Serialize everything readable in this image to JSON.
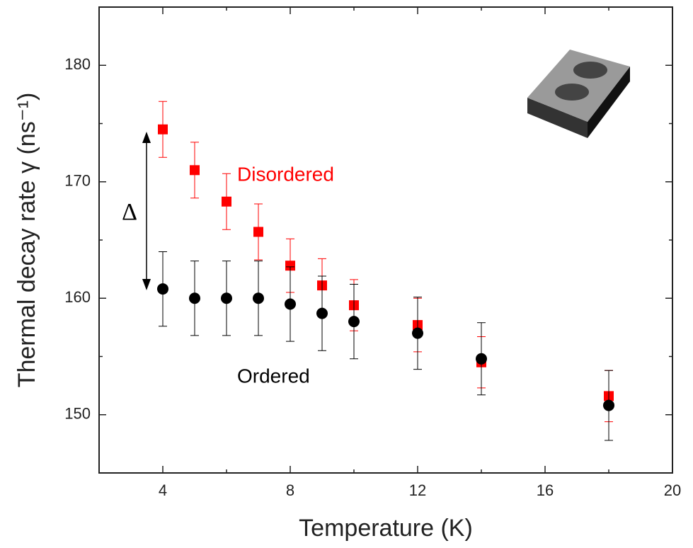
{
  "chart_data": {
    "type": "scatter",
    "xlabel": "Temperature (K)",
    "ylabel": "Thermal decay rate γ (ns⁻¹)",
    "xlim": [
      2,
      20
    ],
    "ylim": [
      145,
      185
    ],
    "xticks": [
      4,
      8,
      12,
      16,
      20
    ],
    "yticks": [
      150,
      160,
      170,
      180
    ],
    "xminorticks": [
      2,
      6,
      10,
      14,
      18
    ],
    "yminorticks": [
      145,
      155,
      165,
      175,
      185
    ],
    "series": [
      {
        "name": "Disordered",
        "color": "#ff0000",
        "marker": "square",
        "x": [
          4,
          5,
          6,
          7,
          8,
          9,
          10,
          12,
          14,
          18
        ],
        "values": [
          174.5,
          171,
          168.3,
          165.7,
          162.8,
          161.1,
          159.4,
          157.7,
          154.5,
          151.6
        ],
        "errors": [
          2.4,
          2.4,
          2.4,
          2.4,
          2.3,
          2.3,
          2.2,
          2.3,
          2.2,
          2.2
        ]
      },
      {
        "name": "Ordered",
        "color": "#000000",
        "marker": "circle",
        "x": [
          4,
          5,
          6,
          7,
          8,
          9,
          10,
          12,
          14,
          18
        ],
        "values": [
          160.8,
          160,
          160,
          160,
          159.5,
          158.7,
          158,
          157,
          154.8,
          150.8
        ],
        "errors": [
          3.2,
          3.2,
          3.2,
          3.2,
          3.2,
          3.2,
          3.2,
          3.1,
          3.1,
          3.0
        ]
      }
    ],
    "annotations": [
      "Δ"
    ]
  }
}
